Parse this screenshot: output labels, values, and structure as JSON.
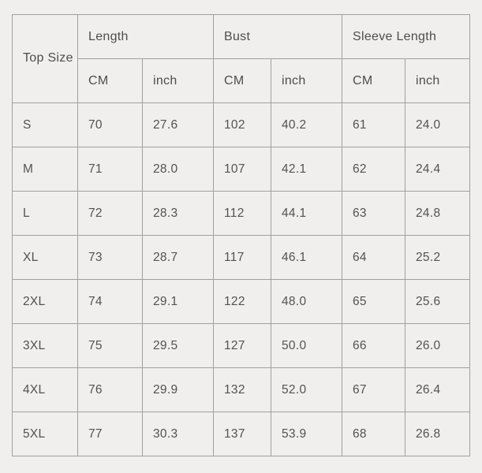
{
  "colors": {
    "page_background": "#f0efee",
    "table_border": "#a0a0a0",
    "text": "#4f4f4f"
  },
  "table": {
    "corner_label": "Top\nSize",
    "groups": [
      {
        "label": "Length"
      },
      {
        "label": "Bust"
      },
      {
        "label": "Sleeve Length"
      }
    ],
    "unit_headers": [
      "CM",
      "inch",
      "CM",
      "inch",
      "CM",
      "inch"
    ],
    "rows": [
      {
        "size": "S",
        "values": [
          "70",
          "27.6",
          "102",
          "40.2",
          "61",
          "24.0"
        ]
      },
      {
        "size": "M",
        "values": [
          "71",
          "28.0",
          "107",
          "42.1",
          "62",
          "24.4"
        ]
      },
      {
        "size": "L",
        "values": [
          "72",
          "28.3",
          "112",
          "44.1",
          "63",
          "24.8"
        ]
      },
      {
        "size": "XL",
        "values": [
          "73",
          "28.7",
          "117",
          "46.1",
          "64",
          "25.2"
        ]
      },
      {
        "size": "2XL",
        "values": [
          "74",
          "29.1",
          "122",
          "48.0",
          "65",
          "25.6"
        ]
      },
      {
        "size": "3XL",
        "values": [
          "75",
          "29.5",
          "127",
          "50.0",
          "66",
          "26.0"
        ]
      },
      {
        "size": "4XL",
        "values": [
          "76",
          "29.9",
          "132",
          "52.0",
          "67",
          "26.4"
        ]
      },
      {
        "size": "5XL",
        "values": [
          "77",
          "30.3",
          "137",
          "53.9",
          "68",
          "26.8"
        ]
      }
    ]
  },
  "chart_data": {
    "type": "table",
    "title": "Top Size Chart",
    "columns": [
      "Top Size",
      "Length CM",
      "Length inch",
      "Bust CM",
      "Bust inch",
      "Sleeve Length CM",
      "Sleeve Length inch"
    ],
    "rows": [
      [
        "S",
        70,
        27.6,
        102,
        40.2,
        61,
        24.0
      ],
      [
        "M",
        71,
        28.0,
        107,
        42.1,
        62,
        24.4
      ],
      [
        "L",
        72,
        28.3,
        112,
        44.1,
        63,
        24.8
      ],
      [
        "XL",
        73,
        28.7,
        117,
        46.1,
        64,
        25.2
      ],
      [
        "2XL",
        74,
        29.1,
        122,
        48.0,
        65,
        25.6
      ],
      [
        "3XL",
        75,
        29.5,
        127,
        50.0,
        66,
        26.0
      ],
      [
        "4XL",
        76,
        29.9,
        132,
        52.0,
        67,
        26.4
      ],
      [
        "5XL",
        77,
        30.3,
        137,
        53.9,
        68,
        26.8
      ]
    ]
  }
}
